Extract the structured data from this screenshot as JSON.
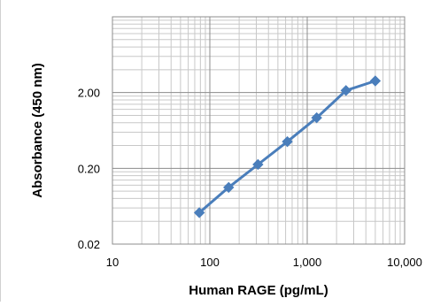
{
  "chart_data": {
    "type": "line",
    "title": "",
    "xlabel": "Human RAGE (pg/mL)",
    "ylabel": "Absorbance (450 nm)",
    "x_scale": "log",
    "y_scale": "log",
    "xlim": [
      10,
      10000
    ],
    "ylim": [
      0.02,
      20
    ],
    "x_tick_labels": [
      "10",
      "100",
      "1,000",
      "10,000"
    ],
    "x_tick_values": [
      10,
      100,
      1000,
      10000
    ],
    "y_tick_labels": [
      "0.02",
      "0.20",
      "2.00"
    ],
    "y_tick_values": [
      0.02,
      0.2,
      2.0
    ],
    "grid": true,
    "marker": "diamond",
    "series": [
      {
        "color": "#4a7ebb",
        "x": [
          78,
          156,
          312,
          625,
          1250,
          2500,
          5000
        ],
        "y": [
          0.052,
          0.112,
          0.225,
          0.45,
          0.93,
          2.13,
          2.85
        ]
      }
    ]
  }
}
